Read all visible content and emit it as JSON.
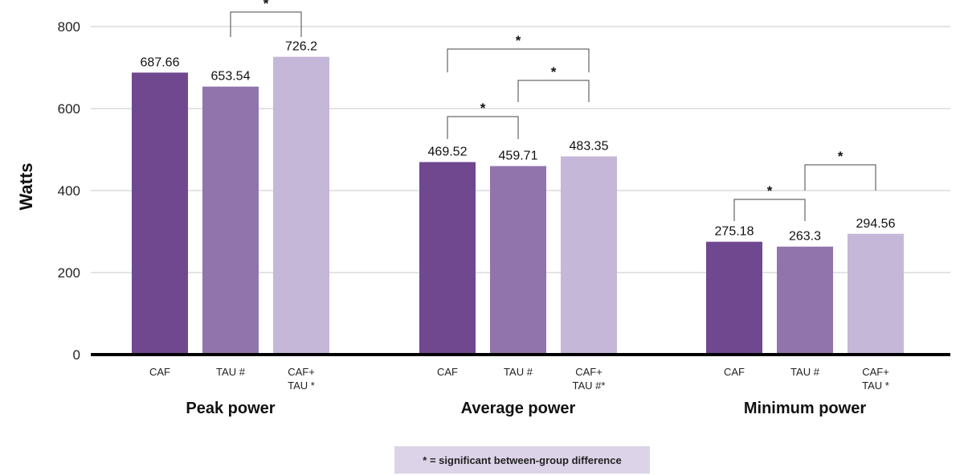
{
  "chart_data": {
    "type": "bar",
    "ylabel": "Watts",
    "ylim": [
      0,
      800
    ],
    "yticks": [
      0,
      200,
      400,
      600,
      800
    ],
    "grid": true,
    "groups": [
      {
        "name": "Peak power",
        "bars": [
          {
            "label": [
              "CAF"
            ],
            "value": 687.66,
            "value_label": "687.66",
            "color": "#6f4890"
          },
          {
            "label": [
              "TAU #"
            ],
            "value": 653.54,
            "value_label": "653.54",
            "color": "#9174ac"
          },
          {
            "label": [
              "CAF+",
              "TAU *"
            ],
            "value": 726.2,
            "value_label": "726.2",
            "color": "#c5b7d7"
          }
        ],
        "significance": [
          {
            "from": 1,
            "to": 2,
            "symbol": "*"
          }
        ]
      },
      {
        "name": "Average power",
        "bars": [
          {
            "label": [
              "CAF"
            ],
            "value": 469.52,
            "value_label": "469.52",
            "color": "#6f4890"
          },
          {
            "label": [
              "TAU #"
            ],
            "value": 459.71,
            "value_label": "459.71",
            "color": "#9174ac"
          },
          {
            "label": [
              "CAF+",
              "TAU #*"
            ],
            "value": 483.35,
            "value_label": "483.35",
            "color": "#c5b7d7"
          }
        ],
        "significance": [
          {
            "from": 0,
            "to": 2,
            "symbol": "*"
          },
          {
            "from": 1,
            "to": 2,
            "symbol": "*"
          },
          {
            "from": 0,
            "to": 1,
            "symbol": "*"
          }
        ]
      },
      {
        "name": "Minimum power",
        "bars": [
          {
            "label": [
              "CAF"
            ],
            "value": 275.18,
            "value_label": "275.18",
            "color": "#6f4890"
          },
          {
            "label": [
              "TAU #"
            ],
            "value": 263.3,
            "value_label": "263.3",
            "color": "#9174ac"
          },
          {
            "label": [
              "CAF+",
              "TAU *"
            ],
            "value": 294.56,
            "value_label": "294.56",
            "color": "#c5b7d7"
          }
        ],
        "significance": [
          {
            "from": 1,
            "to": 2,
            "symbol": "*"
          },
          {
            "from": 0,
            "to": 1,
            "symbol": "*"
          }
        ]
      }
    ],
    "legend": {
      "text": "* = significant between-group difference",
      "background": "#dcd3e8",
      "placement": "bottom-center"
    }
  }
}
